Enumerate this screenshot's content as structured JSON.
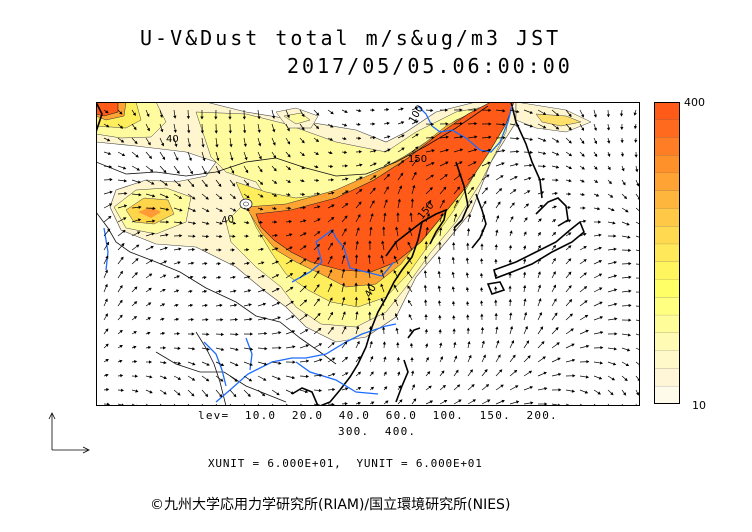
{
  "header": {
    "title": "U-V&Dust total m/s&ug/m3 JST",
    "datetime": "2017/05/05.06:00:00"
  },
  "colorbar": {
    "max_label": "400",
    "min_label": "10",
    "colors": [
      "#ff5a18",
      "#ff6a1e",
      "#ff7d24",
      "#ff912b",
      "#ffa434",
      "#ffb63c",
      "#ffc846",
      "#ffd950",
      "#ffe95a",
      "#fff55e",
      "#ffff66",
      "#ffff80",
      "#fffd9a",
      "#fffbb4",
      "#fff8c8",
      "#fff6d8",
      "#fffbea"
    ]
  },
  "contour_labels": [
    "100",
    "150",
    "150",
    "40",
    "40",
    "40"
  ],
  "levels_line1": "lev=  10.0  20.0  40.0  60.0  100.  150.  200.",
  "levels_line2": "300.  400.",
  "units_line": "XUNIT = 6.000E+01,  YUNIT = 6.000E+01",
  "copyright": "©九州大学応用力学研究所(RIAM)/国立環境研究所(NIES)",
  "style": {
    "coast_color": "#000000",
    "river_color": "#1e6cff",
    "dust_high": "#ff5a18",
    "dust_low": "#fff6d0"
  }
}
